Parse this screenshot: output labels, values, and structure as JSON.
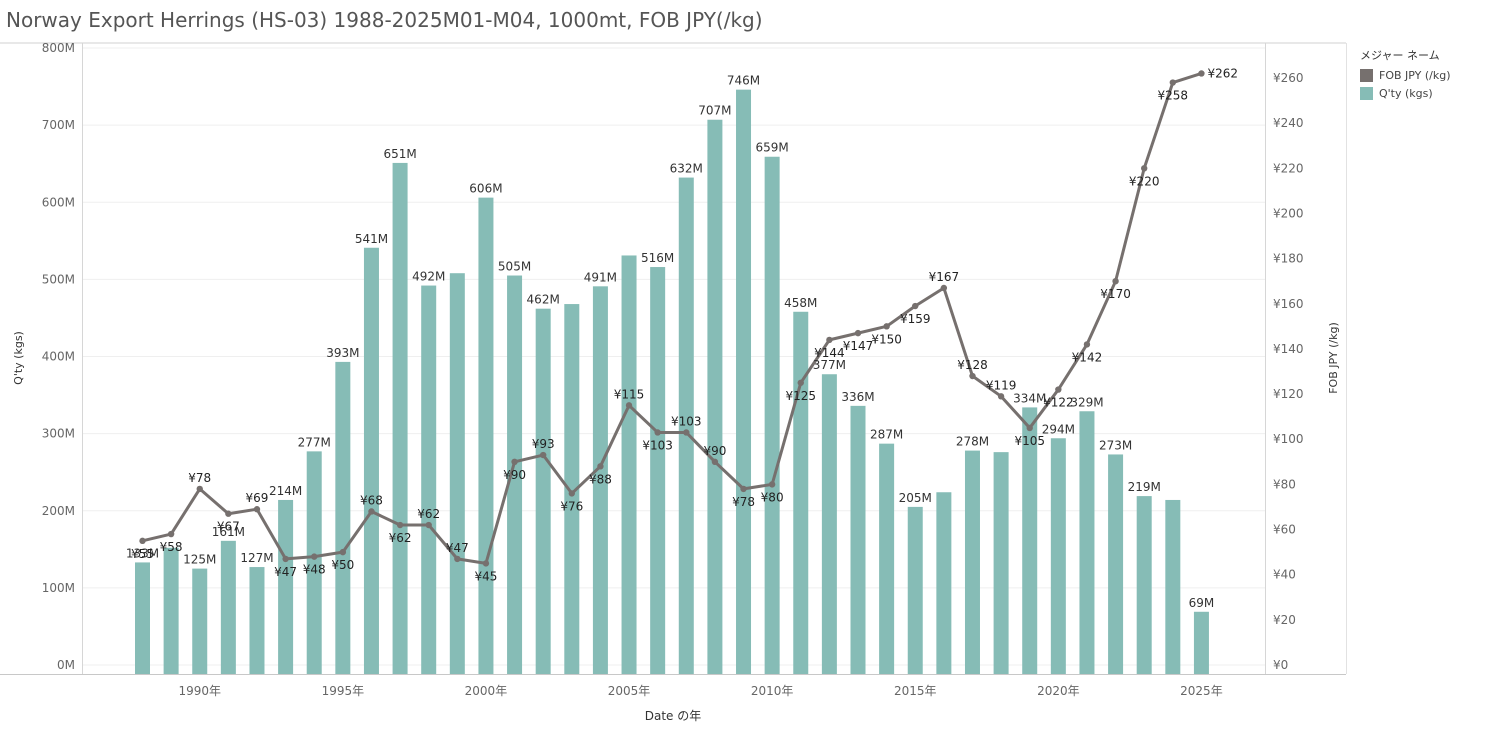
{
  "title": "Norway Export Herrings (HS-03) 1988-2025M01-M04, 1000mt, FOB JPY(/kg)",
  "legend": {
    "title": "メジャー ネーム",
    "items": [
      {
        "label": "FOB JPY (/kg)",
        "color": "#76706e"
      },
      {
        "label": "Q'ty (kgs)",
        "color": "#86bcb6"
      }
    ]
  },
  "chart_data": {
    "type": "bar+line",
    "xlabel": "Date の年",
    "ylabel_left": "Q'ty (kgs)",
    "ylabel_right": "FOB JPY (/kg)",
    "ylim_left": [
      0,
      800
    ],
    "ylim_right": [
      0,
      270
    ],
    "left_ticks": [
      "0M",
      "100M",
      "200M",
      "300M",
      "400M",
      "500M",
      "600M",
      "700M",
      "800M"
    ],
    "right_ticks": [
      "¥0",
      "¥20",
      "¥40",
      "¥60",
      "¥80",
      "¥100",
      "¥120",
      "¥140",
      "¥160",
      "¥180",
      "¥200",
      "¥220",
      "¥240",
      "¥260"
    ],
    "x_ticks": [
      {
        "year": 1990,
        "label": "1990年"
      },
      {
        "year": 1995,
        "label": "1995年"
      },
      {
        "year": 2000,
        "label": "2000年"
      },
      {
        "year": 2005,
        "label": "2005年"
      },
      {
        "year": 2010,
        "label": "2010年"
      },
      {
        "year": 2015,
        "label": "2015年"
      },
      {
        "year": 2020,
        "label": "2020年"
      },
      {
        "year": 2025,
        "label": "2025年"
      }
    ],
    "years": [
      1988,
      1989,
      1990,
      1991,
      1992,
      1993,
      1994,
      1995,
      1996,
      1997,
      1998,
      1999,
      2000,
      2001,
      2002,
      2003,
      2004,
      2005,
      2006,
      2007,
      2008,
      2009,
      2010,
      2011,
      2012,
      2013,
      2014,
      2015,
      2016,
      2017,
      2018,
      2019,
      2020,
      2021,
      2022,
      2023,
      2024,
      2025
    ],
    "qty_values": [
      133,
      152,
      125,
      161,
      127,
      214,
      277,
      393,
      541,
      651,
      492,
      508,
      606,
      505,
      462,
      468,
      491,
      531,
      516,
      632,
      707,
      746,
      659,
      458,
      377,
      336,
      287,
      205,
      224,
      278,
      276,
      334,
      294,
      329,
      273,
      219,
      214,
      69
    ],
    "qty_labels": [
      "133M",
      "",
      "125M",
      "161M",
      "127M",
      "214M",
      "277M",
      "393M",
      "541M",
      "651M",
      "492M",
      "",
      "606M",
      "505M",
      "462M",
      "",
      "491M",
      "",
      "516M",
      "632M",
      "707M",
      "746M",
      "659M",
      "458M",
      "377M",
      "336M",
      "287M",
      "205M",
      "",
      "278M",
      "",
      "334M",
      "294M",
      "329M",
      "273M",
      "219M",
      "",
      "69M"
    ],
    "price_values": [
      55,
      58,
      78,
      67,
      69,
      47,
      48,
      50,
      68,
      62,
      62,
      47,
      45,
      90,
      93,
      76,
      88,
      115,
      103,
      103,
      90,
      78,
      80,
      125,
      144,
      147,
      150,
      159,
      167,
      128,
      119,
      105,
      122,
      142,
      170,
      220,
      258,
      262
    ],
    "price_labels": [
      "¥55",
      "¥58",
      "¥78",
      "¥67",
      "¥69",
      "¥47",
      "¥48",
      "¥50",
      "¥68",
      "¥62",
      "¥62",
      "¥47",
      "¥45",
      "¥90",
      "¥93",
      "¥76",
      "¥88",
      "¥115",
      "¥103",
      "¥103",
      "¥90",
      "¥78",
      "¥80",
      "¥125",
      "¥144",
      "¥147",
      "¥150",
      "¥159",
      "¥167",
      "¥128",
      "¥119",
      "¥105",
      "¥122",
      "¥142",
      "¥170",
      "¥220",
      "¥258",
      "¥262"
    ],
    "grid": true,
    "legend_position": "top-right"
  }
}
